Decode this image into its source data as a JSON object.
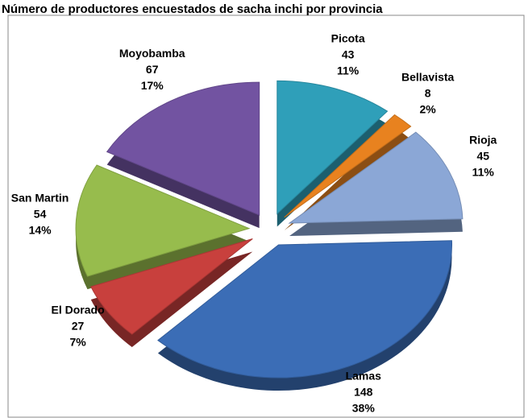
{
  "chart_data": {
    "type": "pie",
    "title": "Número de productores encuestados de sacha inchi por provincia",
    "categories": [
      "Picota",
      "Bellavista",
      "Rioja",
      "Lamas",
      "El Dorado",
      "San Martin",
      "Moyobamba"
    ],
    "values": [
      43,
      8,
      45,
      148,
      27,
      54,
      67
    ],
    "percent_labels": [
      "11%",
      "2%",
      "11%",
      "38%",
      "7%",
      "14%",
      "17%"
    ],
    "colors": [
      "#2f9fb9",
      "#e8821f",
      "#8ba7d6",
      "#3b6db6",
      "#c8403d",
      "#97bc4d",
      "#7253a1"
    ],
    "exploded": true,
    "three_d": true
  }
}
